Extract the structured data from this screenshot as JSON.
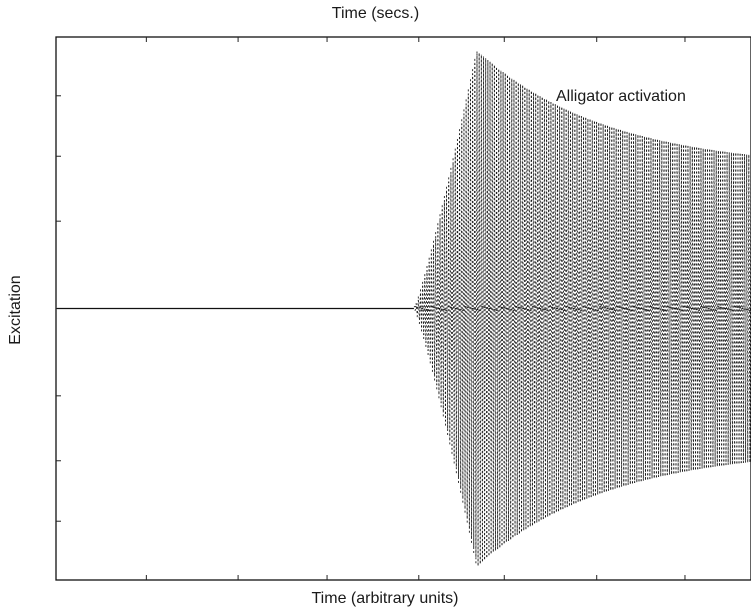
{
  "chart_data": {
    "type": "line",
    "title": "Time (secs.)",
    "xlabel": "Time (arbitrary units)",
    "ylabel": "Excitation",
    "annotation": "Alligator activation",
    "x_range": [
      0,
      1
    ],
    "y_range": [
      -1.15,
      1.15
    ],
    "grid": false,
    "series": [
      {
        "onset": 0.515,
        "peak_time": 0.605,
        "peak_amplitude": 1.15,
        "end_amplitude": 0.62,
        "cycles": 155,
        "style": "dotted oscillation"
      }
    ]
  }
}
